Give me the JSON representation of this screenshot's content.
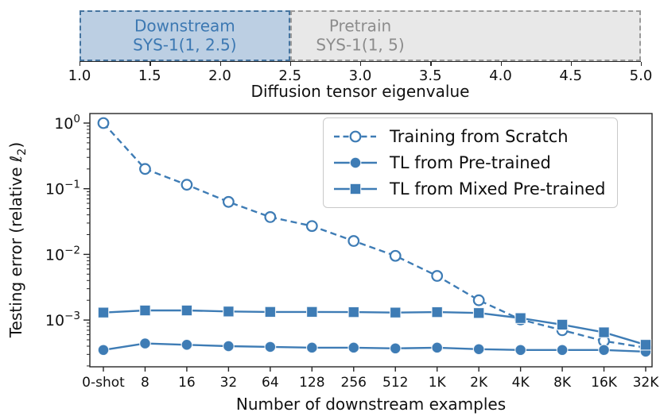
{
  "top_panel": {
    "xlabel": "Diffusion tensor eigenvalue",
    "xmin": 1.0,
    "xmax": 5.0,
    "x_ticks": [
      "1.0",
      "1.5",
      "2.0",
      "2.5",
      "3.0",
      "3.5",
      "4.0",
      "4.5",
      "5.0"
    ],
    "regions": [
      {
        "name": "downstream",
        "label_line1": "Downstream",
        "label_line2": "SYS-1(1, 2.5)",
        "start": 1.0,
        "end": 2.5,
        "label_at": 1.75,
        "fill": "#bccfe3",
        "border": "#45749f",
        "text_color": "#3c78b2"
      },
      {
        "name": "pretrain",
        "label_line1": "Pretrain",
        "label_line2": "SYS-1(1, 5)",
        "start": 2.5,
        "end": 5.0,
        "label_at": 3.0,
        "fill": "#e8e8e8",
        "border": "#9a9a9a",
        "text_color": "#8c8c8c"
      }
    ]
  },
  "chart_data": {
    "type": "line",
    "title": "",
    "xlabel": "Number of downstream examples",
    "ylabel_prefix": "Testing error (relative ℓ",
    "ylabel_sub": "2",
    "ylabel_suffix": ")",
    "x_categories": [
      "0-shot",
      "8",
      "16",
      "32",
      "64",
      "128",
      "256",
      "512",
      "1K",
      "2K",
      "4K",
      "8K",
      "16K",
      "32K"
    ],
    "y_scale": "log",
    "y_tick_exponents": [
      "0",
      "−1",
      "−2",
      "−3"
    ],
    "ylim": [
      0.00019,
      1.4
    ],
    "grid": false,
    "legend_position": "upper right",
    "line_color": "#3e7cb5",
    "axis_color": "#262626",
    "series": [
      {
        "name": "Training from Scratch",
        "line": "dashed",
        "marker": "circle-open",
        "values": [
          1.0,
          0.2,
          0.115,
          0.063,
          0.037,
          0.027,
          0.016,
          0.0095,
          0.0047,
          0.002,
          0.00102,
          0.0007,
          0.00048,
          0.00038
        ]
      },
      {
        "name": "TL from Pre-trained",
        "line": "solid",
        "marker": "circle",
        "values": [
          0.00035,
          0.00044,
          0.00042,
          0.0004,
          0.00039,
          0.00038,
          0.00038,
          0.00037,
          0.00038,
          0.00036,
          0.00035,
          0.00035,
          0.00035,
          0.00033
        ]
      },
      {
        "name": "TL from Mixed Pre-trained",
        "line": "solid",
        "marker": "square",
        "values": [
          0.0013,
          0.0014,
          0.0014,
          0.00135,
          0.00133,
          0.00133,
          0.00132,
          0.0013,
          0.00132,
          0.00128,
          0.00107,
          0.00085,
          0.00065,
          0.00042
        ]
      }
    ]
  }
}
